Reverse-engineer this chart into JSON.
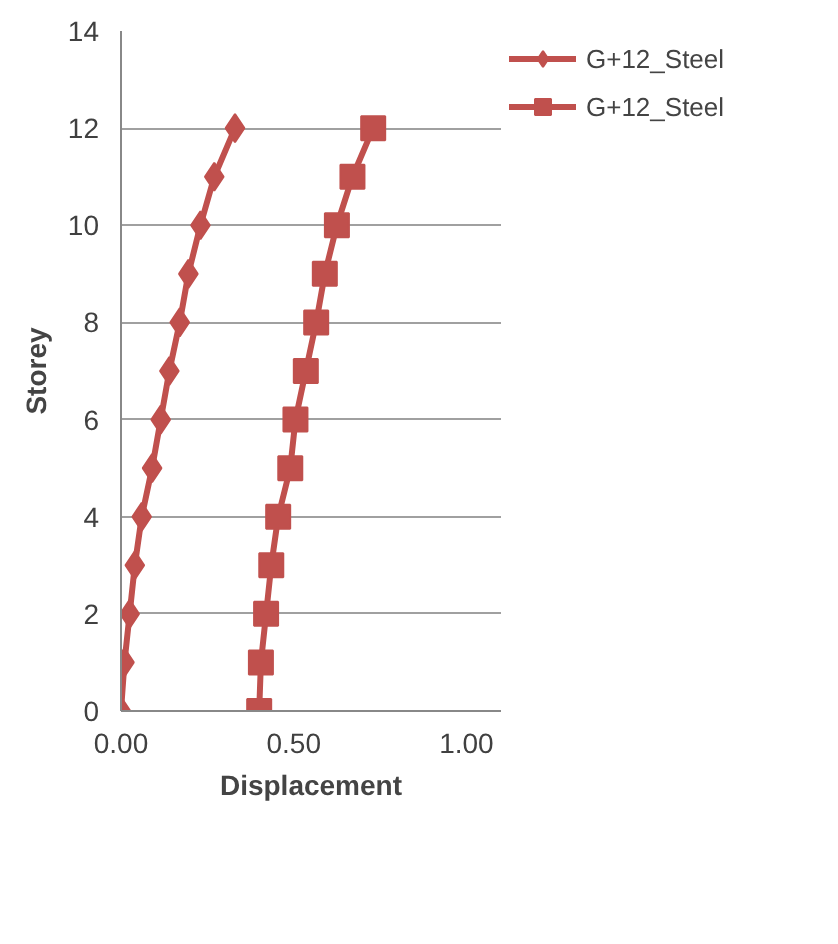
{
  "chart_data": {
    "type": "line",
    "xlabel": "Displacement",
    "ylabel": "Storey",
    "xlim": [
      0,
      1.1
    ],
    "xticks": [
      {
        "value": 0,
        "label": "0.00"
      },
      {
        "value": 0.5,
        "label": "0.50"
      },
      {
        "value": 1,
        "label": "1.00"
      }
    ],
    "ylim": [
      0,
      14
    ],
    "yticks": [
      0,
      2,
      4,
      6,
      8,
      10,
      12,
      14
    ],
    "grid": "y",
    "legend": "top right",
    "line_style": "solid",
    "series": [
      {
        "name": "G+12_Steel",
        "color": "#c0504d",
        "marker": "diamond",
        "x": [
          0.0,
          0.01,
          0.025,
          0.04,
          0.06,
          0.09,
          0.115,
          0.14,
          0.17,
          0.195,
          0.23,
          0.27,
          0.33
        ],
        "values": [
          0,
          1,
          2,
          3,
          4,
          5,
          6,
          7,
          8,
          9,
          10,
          11,
          12
        ]
      },
      {
        "name": "G+12_Steel",
        "color": "#c0504d",
        "marker": "square",
        "x": [
          0.4,
          0.405,
          0.42,
          0.435,
          0.455,
          0.49,
          0.505,
          0.535,
          0.565,
          0.59,
          0.625,
          0.67,
          0.73
        ],
        "values": [
          0,
          1,
          2,
          3,
          4,
          5,
          6,
          7,
          8,
          9,
          10,
          11,
          12
        ]
      }
    ]
  }
}
